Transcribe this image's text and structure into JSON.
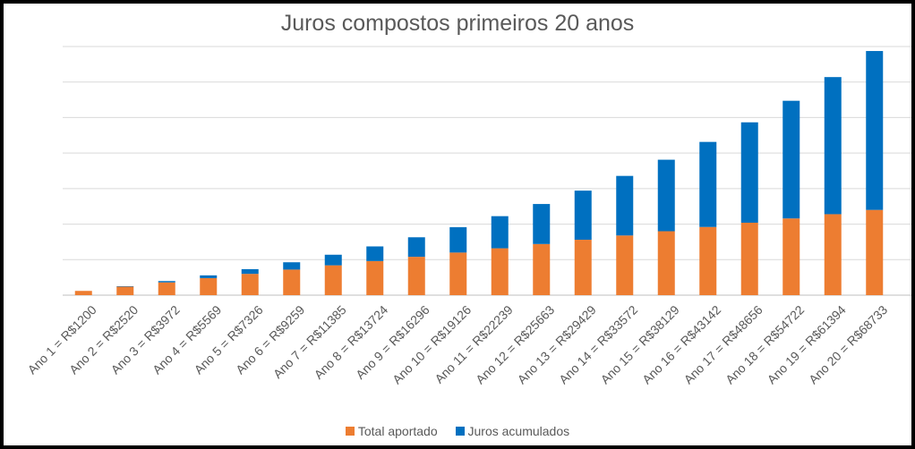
{
  "chart_data": {
    "type": "bar",
    "stacked": true,
    "title": "Juros compostos primeiros 20 anos",
    "xlabel": "",
    "ylabel": "",
    "categories": [
      "Ano 1 = R$1200",
      "Ano 2 = R$2520",
      "Ano 3 = R$3972",
      "Ano 4 = R$5569",
      "Ano 5 = R$7326",
      "Ano 6 = R$9259",
      "Ano 7 = R$11385",
      "Ano 8 = R$13724",
      "Ano 9 = R$16296",
      "Ano 10 = R$19126",
      "Ano 11 = R$22239",
      "Ano 12 = R$25663",
      "Ano 13 = R$29429",
      "Ano 14 = R$33572",
      "Ano 15 = R$38129",
      "Ano 16 = R$43142",
      "Ano 17 = R$48656",
      "Ano 18 = R$54722",
      "Ano 19 = R$61394",
      "Ano 20 = R$68733"
    ],
    "series": [
      {
        "name": "Total aportado",
        "color": "#ED7D31",
        "values": [
          1200,
          2400,
          3600,
          4800,
          6000,
          7200,
          8400,
          9600,
          10800,
          12000,
          13200,
          14400,
          15600,
          16800,
          18000,
          19200,
          20400,
          21600,
          22800,
          24000
        ]
      },
      {
        "name": "Juros acumulados",
        "color": "#0070C0",
        "values": [
          0,
          120,
          372,
          769,
          1326,
          2059,
          2985,
          4124,
          5496,
          7126,
          9039,
          11263,
          13829,
          16772,
          20129,
          23942,
          28256,
          33122,
          38594,
          44733
        ]
      }
    ],
    "ylim": [
      0,
      70000
    ],
    "y_gridlines": [
      0,
      10000,
      20000,
      30000,
      40000,
      50000,
      60000,
      70000
    ],
    "y_tick_labels_shown": false,
    "grid": true,
    "legend_position": "bottom"
  }
}
